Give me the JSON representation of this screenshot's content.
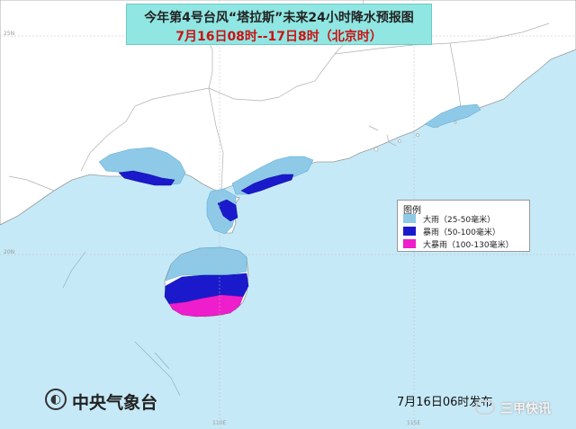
{
  "title": {
    "line1": "今年第4号台风“塔拉斯”未来24小时降水预报图",
    "line2": "7月16日08时--17日8时（北京时）"
  },
  "legend": {
    "title": "图例",
    "items": [
      {
        "label": "大雨（25-50毫米）",
        "color": "#8ec9e8"
      },
      {
        "label": "暴雨（50-100毫米）",
        "color": "#1a1acc"
      },
      {
        "label": "大暴雨（100-130毫米）",
        "color": "#ee1ecc"
      }
    ]
  },
  "colors": {
    "sea": "#c6e9f7",
    "land": "#ffffff",
    "boundary": "#9a9a9a"
  },
  "grid_labels": {
    "lat_top": "25N",
    "lat_mid": "20N",
    "lon_left": "110E",
    "lon_right": "115E"
  },
  "organization": {
    "logo_icon": "cma-logo-icon",
    "name": "中央气象台"
  },
  "issue_time": "7月16日06时发布",
  "watermark": {
    "icon": "wechat-icon",
    "text": "三甲快讯"
  }
}
